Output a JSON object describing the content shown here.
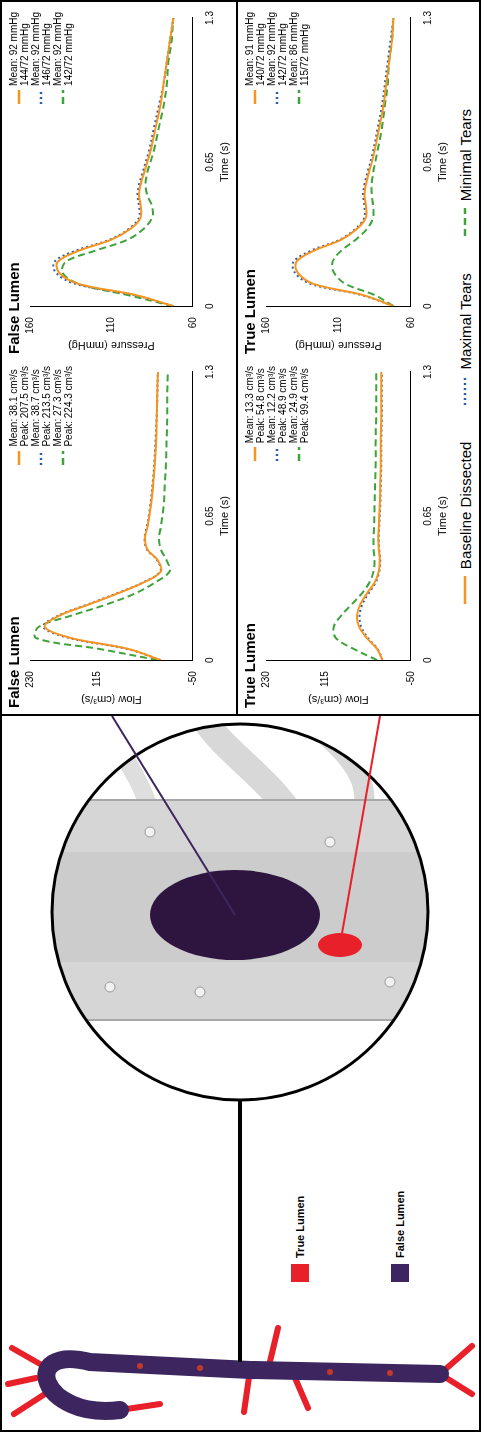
{
  "diagram": {
    "legend": [
      {
        "label": "True Lumen",
        "color": "#e8202a"
      },
      {
        "label": "False Lumen",
        "color": "#3d2660"
      }
    ]
  },
  "chart_data": [
    {
      "type": "line",
      "title": "False Lumen",
      "x_label": "Time (s)",
      "y_label": "Flow (cm³/s)",
      "x": [
        0,
        0.05,
        0.1,
        0.15,
        0.2,
        0.25,
        0.3,
        0.35,
        0.4,
        0.45,
        0.5,
        0.55,
        0.6,
        0.7,
        0.8,
        0.9,
        1.0,
        1.1,
        1.2,
        1.3
      ],
      "xlim": [
        0,
        1.3
      ],
      "xticks": [
        0,
        0.65,
        1.3
      ],
      "ylim": [
        -50,
        230
      ],
      "yticks": [
        -50,
        115,
        230
      ],
      "grid": false,
      "series": [
        {
          "name": "Baseline Dissected",
          "color": "#f7941d",
          "line_style": "solid",
          "values": [
            5,
            60,
            160,
            205,
            180,
            130,
            80,
            35,
            5,
            10,
            28,
            32,
            28,
            22,
            18,
            15,
            13,
            12,
            11,
            10
          ],
          "annotations": [
            "Mean: 38.1 cm³/s",
            "Peak: 207.5 cm³/s"
          ]
        },
        {
          "name": "Maximal Tears",
          "color": "#2b5fad",
          "line_style": "dotted",
          "values": [
            5,
            62,
            163,
            207,
            182,
            132,
            82,
            36,
            6,
            11,
            29,
            33,
            29,
            23,
            19,
            16,
            14,
            12,
            11,
            10
          ],
          "annotations": [
            "Mean: 38.7 cm³/s",
            "Peak: 213.5 cm³/s"
          ]
        },
        {
          "name": "Minimal Tears",
          "color": "#3ea33a",
          "line_style": "dashed",
          "values": [
            10,
            110,
            220,
            215,
            160,
            100,
            50,
            15,
            -10,
            -5,
            5,
            8,
            5,
            0,
            -2,
            -4,
            -5,
            -6,
            -6,
            -7
          ],
          "annotations": [
            "Mean: 27.3 cm³/s",
            "Peak: 224.3 cm³/s"
          ]
        }
      ]
    },
    {
      "type": "line",
      "title": "True Lumen",
      "x_label": "Time (s)",
      "y_label": "Flow (cm³/s)",
      "x": [
        0,
        0.05,
        0.1,
        0.15,
        0.2,
        0.25,
        0.3,
        0.35,
        0.4,
        0.45,
        0.5,
        0.55,
        0.6,
        0.7,
        0.8,
        0.9,
        1.0,
        1.1,
        1.2,
        1.3
      ],
      "xlim": [
        0,
        1.3
      ],
      "xticks": [
        0,
        0.65,
        1.3
      ],
      "ylim": [
        -50,
        230
      ],
      "yticks": [
        -50,
        115,
        230
      ],
      "grid": false,
      "series": [
        {
          "name": "Baseline Dissected",
          "color": "#f7941d",
          "line_style": "solid",
          "values": [
            5,
            15,
            35,
            50,
            54,
            48,
            35,
            20,
            12,
            10,
            12,
            13,
            12,
            10,
            9,
            8,
            8,
            7,
            7,
            7
          ],
          "annotations": [
            "Mean: 13.3 cm³/s",
            "Peak: 54.8 cm³/s"
          ]
        },
        {
          "name": "Maximal Tears",
          "color": "#2b5fad",
          "line_style": "dotted",
          "values": [
            5,
            14,
            33,
            46,
            49,
            44,
            32,
            18,
            11,
            9,
            11,
            12,
            11,
            9,
            8,
            7,
            7,
            6,
            6,
            6
          ],
          "annotations": [
            "Mean: 12.2 cm³/s",
            "Peak: 48.9 cm³/s"
          ]
        },
        {
          "name": "Minimal Tears",
          "color": "#3ea33a",
          "line_style": "dashed",
          "values": [
            15,
            60,
            95,
            99,
            85,
            65,
            45,
            30,
            22,
            20,
            22,
            22,
            21,
            20,
            19,
            18,
            18,
            17,
            17,
            17
          ],
          "annotations": [
            "Mean: 24.9 cm³/s",
            "Peak: 99.4 cm³/s"
          ]
        }
      ]
    },
    {
      "type": "line",
      "title": "False Lumen",
      "x_label": "Time (s)",
      "y_label": "Pressure (mmHg)",
      "x": [
        0,
        0.05,
        0.1,
        0.15,
        0.2,
        0.25,
        0.3,
        0.35,
        0.4,
        0.45,
        0.5,
        0.55,
        0.6,
        0.7,
        0.8,
        0.9,
        1.0,
        1.1,
        1.2,
        1.3
      ],
      "xlim": [
        0,
        1.3
      ],
      "xticks": [
        0,
        0.65,
        1.3
      ],
      "ylim": [
        60,
        160
      ],
      "yticks": [
        60,
        110,
        160
      ],
      "grid": false,
      "series": [
        {
          "name": "Baseline Dissected",
          "color": "#f7941d",
          "line_style": "solid",
          "values": [
            72,
            95,
            130,
            142,
            143,
            130,
            110,
            98,
            92,
            92,
            93,
            92,
            90,
            86,
            83,
            80,
            78,
            76,
            74,
            72
          ],
          "annotations": [
            "Mean: 92 mmHg",
            "144/72 mmHg"
          ]
        },
        {
          "name": "Maximal Tears",
          "color": "#2b5fad",
          "line_style": "dotted",
          "values": [
            72,
            96,
            132,
            144,
            145,
            132,
            111,
            99,
            93,
            93,
            94,
            93,
            91,
            87,
            84,
            81,
            78,
            76,
            74,
            72
          ],
          "annotations": [
            "Mean: 92 mmHg",
            "146/72 mmHg"
          ]
        },
        {
          "name": "Minimal Tears",
          "color": "#3ea33a",
          "line_style": "dashed",
          "values": [
            72,
            100,
            130,
            140,
            138,
            120,
            100,
            90,
            85,
            85,
            88,
            89,
            88,
            84,
            81,
            78,
            76,
            75,
            73,
            72
          ],
          "annotations": [
            "Mean: 92 mmHg",
            "142/72 mmHg"
          ]
        }
      ]
    },
    {
      "type": "line",
      "title": "True Lumen",
      "x_label": "Time (s)",
      "y_label": "Pressure (mmHg)",
      "x": [
        0,
        0.05,
        0.1,
        0.15,
        0.2,
        0.25,
        0.3,
        0.35,
        0.4,
        0.45,
        0.5,
        0.55,
        0.6,
        0.7,
        0.8,
        0.9,
        1.0,
        1.1,
        1.2,
        1.3
      ],
      "xlim": [
        0,
        1.3
      ],
      "xticks": [
        0,
        0.65,
        1.3
      ],
      "ylim": [
        60,
        160
      ],
      "yticks": [
        60,
        110,
        160
      ],
      "grid": false,
      "series": [
        {
          "name": "Baseline Dissected",
          "color": "#f7941d",
          "line_style": "solid",
          "values": [
            72,
            93,
            127,
            138,
            139,
            127,
            108,
            97,
            91,
            91,
            92,
            91,
            89,
            85,
            82,
            79,
            77,
            75,
            73,
            72
          ],
          "annotations": [
            "Mean: 91 mmHg",
            "140/72 mmHg"
          ]
        },
        {
          "name": "Maximal Tears",
          "color": "#2b5fad",
          "line_style": "dotted",
          "values": [
            72,
            94,
            129,
            140,
            141,
            129,
            109,
            98,
            92,
            92,
            93,
            92,
            90,
            86,
            83,
            80,
            78,
            76,
            74,
            72
          ],
          "annotations": [
            "Mean: 92 mmHg",
            "142/72 mmHg"
          ]
        },
        {
          "name": "Minimal Tears",
          "color": "#3ea33a",
          "line_style": "dashed",
          "values": [
            72,
            85,
            105,
            113,
            114,
            108,
            98,
            90,
            86,
            86,
            87,
            87,
            86,
            83,
            80,
            78,
            76,
            75,
            73,
            72
          ],
          "annotations": [
            "Mean: 86 mmHg",
            "115/72 mmHg"
          ]
        }
      ]
    }
  ]
}
